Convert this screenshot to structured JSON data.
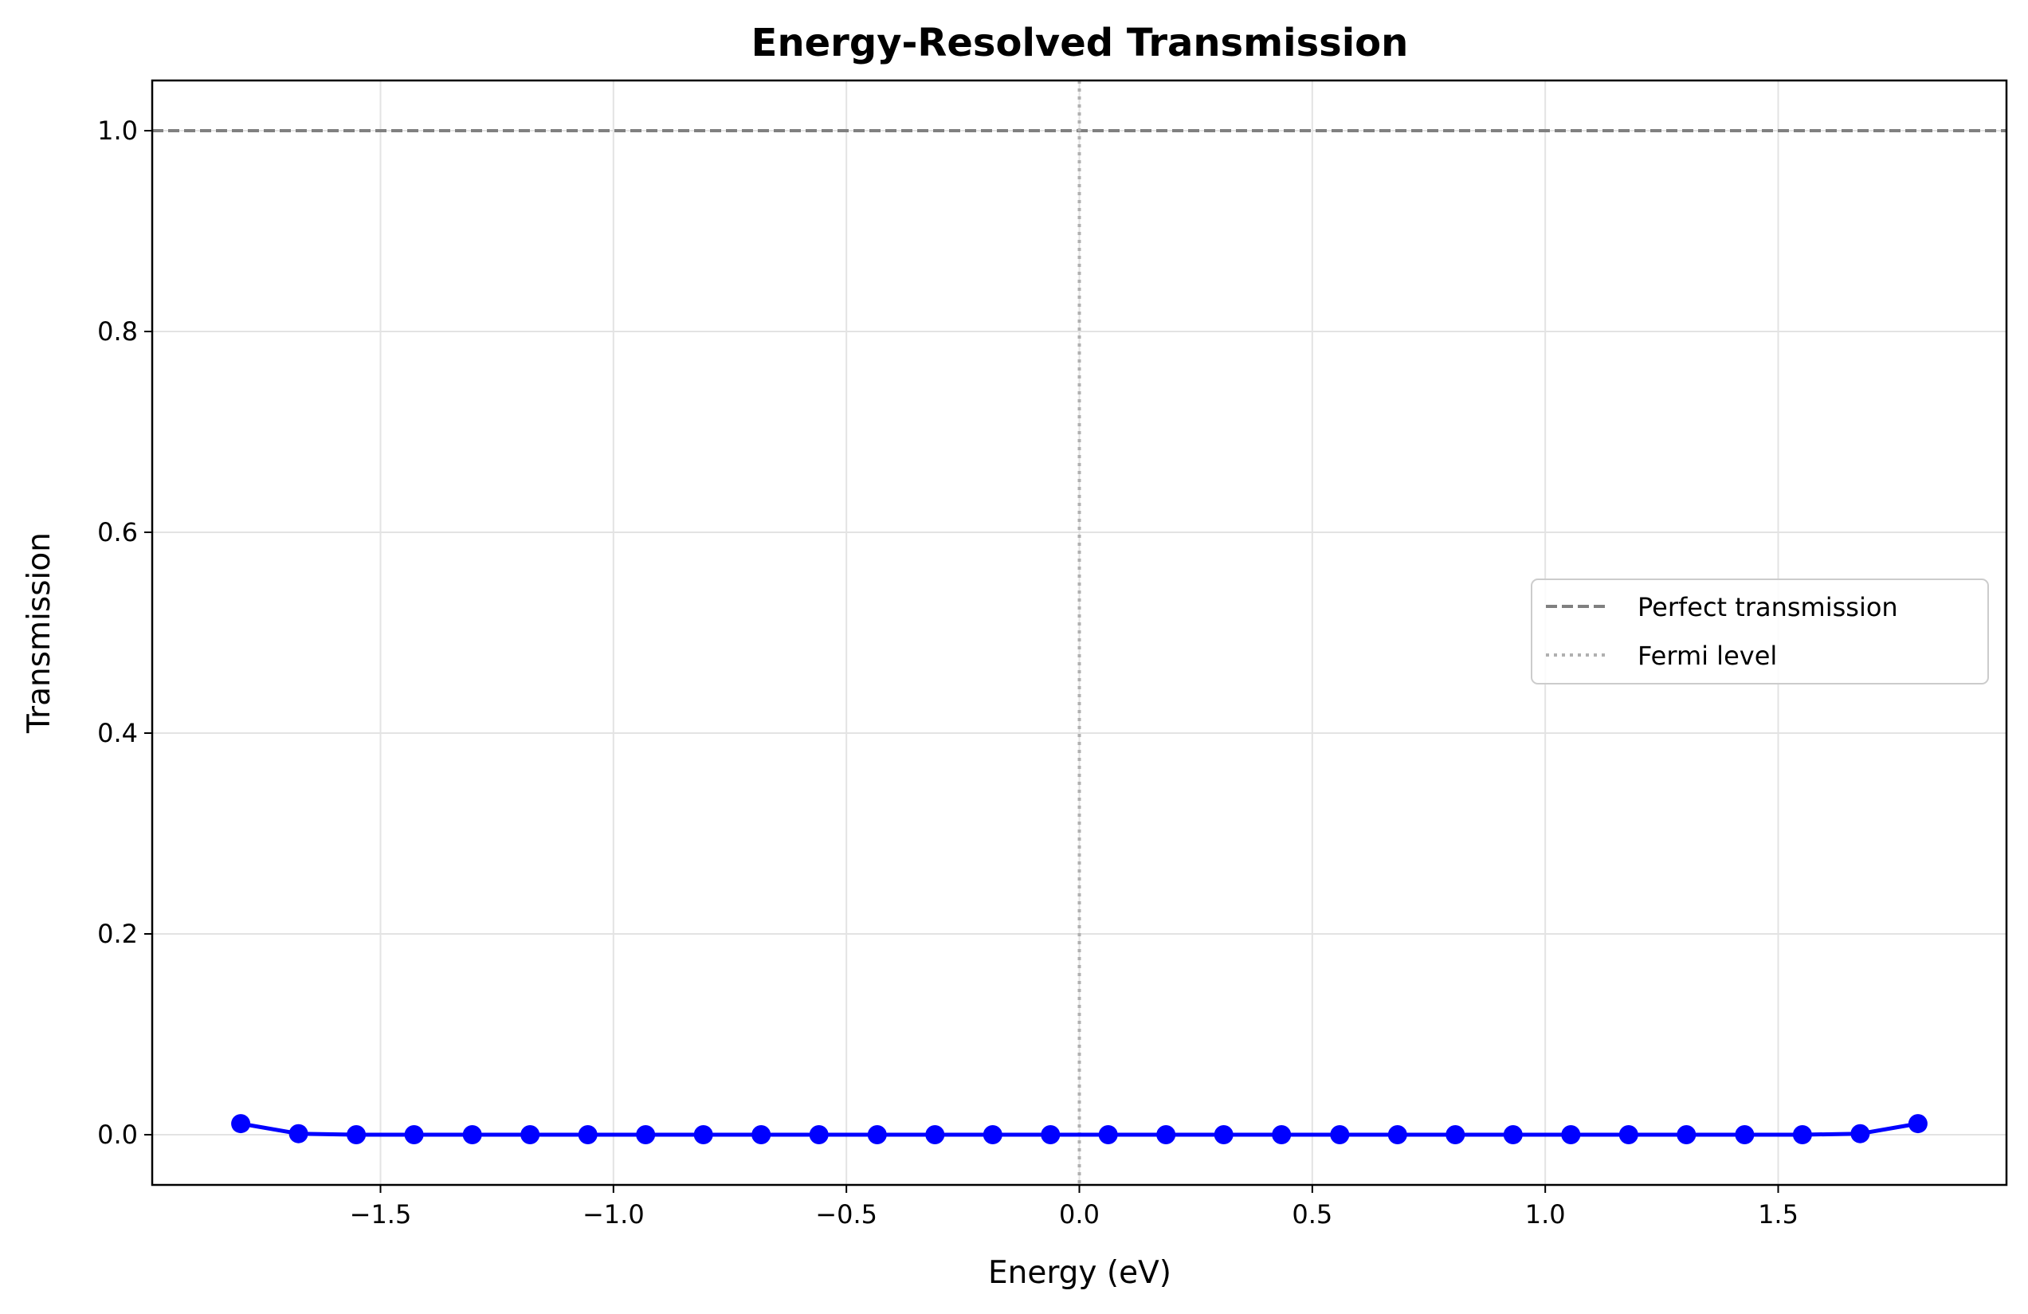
{
  "chart_data": {
    "type": "line",
    "title": "Energy-Resolved Transmission",
    "xlabel": "Energy (eV)",
    "ylabel": "Transmission",
    "xlim": [
      -1.99,
      1.99
    ],
    "ylim": [
      -0.05,
      1.05
    ],
    "xticks": [
      {
        "value": -1.5,
        "label": "−1.5"
      },
      {
        "value": -1.0,
        "label": "−1.0"
      },
      {
        "value": -0.5,
        "label": "−0.5"
      },
      {
        "value": 0.0,
        "label": "0.0"
      },
      {
        "value": 0.5,
        "label": "0.5"
      },
      {
        "value": 1.0,
        "label": "1.0"
      },
      {
        "value": 1.5,
        "label": "1.5"
      }
    ],
    "yticks": [
      {
        "value": 0.0,
        "label": "0.0"
      },
      {
        "value": 0.2,
        "label": "0.2"
      },
      {
        "value": 0.4,
        "label": "0.4"
      },
      {
        "value": 0.6,
        "label": "0.6"
      },
      {
        "value": 0.8,
        "label": "0.8"
      },
      {
        "value": 1.0,
        "label": "1.0"
      }
    ],
    "grid": true,
    "series": [
      {
        "color": "#0000ff",
        "marker": "circle",
        "x": [
          -1.8,
          -1.676,
          -1.552,
          -1.428,
          -1.303,
          -1.179,
          -1.055,
          -0.931,
          -0.807,
          -0.683,
          -0.559,
          -0.434,
          -0.31,
          -0.186,
          -0.062,
          0.062,
          0.186,
          0.31,
          0.434,
          0.559,
          0.683,
          0.807,
          0.931,
          1.055,
          1.179,
          1.303,
          1.428,
          1.552,
          1.676,
          1.8
        ],
        "y": [
          0.011,
          0.001,
          0.0,
          0.0,
          0.0,
          0.0,
          0.0,
          0.0,
          0.0,
          0.0,
          0.0,
          0.0,
          0.0,
          0.0,
          0.0,
          0.0,
          0.0,
          0.0,
          0.0,
          0.0,
          0.0,
          0.0,
          0.0,
          0.0,
          0.0,
          0.0,
          0.0,
          0.0,
          0.001,
          0.011
        ]
      }
    ],
    "reference_lines": [
      {
        "name": "Perfect transmission",
        "orientation": "horizontal",
        "value": 1.0,
        "style": "dashed",
        "color": "#808080"
      },
      {
        "name": "Fermi level",
        "orientation": "vertical",
        "value": 0.0,
        "style": "dotted",
        "color": "#b0b0b0"
      }
    ],
    "legend": {
      "placement": "center-right",
      "entries": [
        "Perfect transmission",
        "Fermi level"
      ]
    }
  }
}
